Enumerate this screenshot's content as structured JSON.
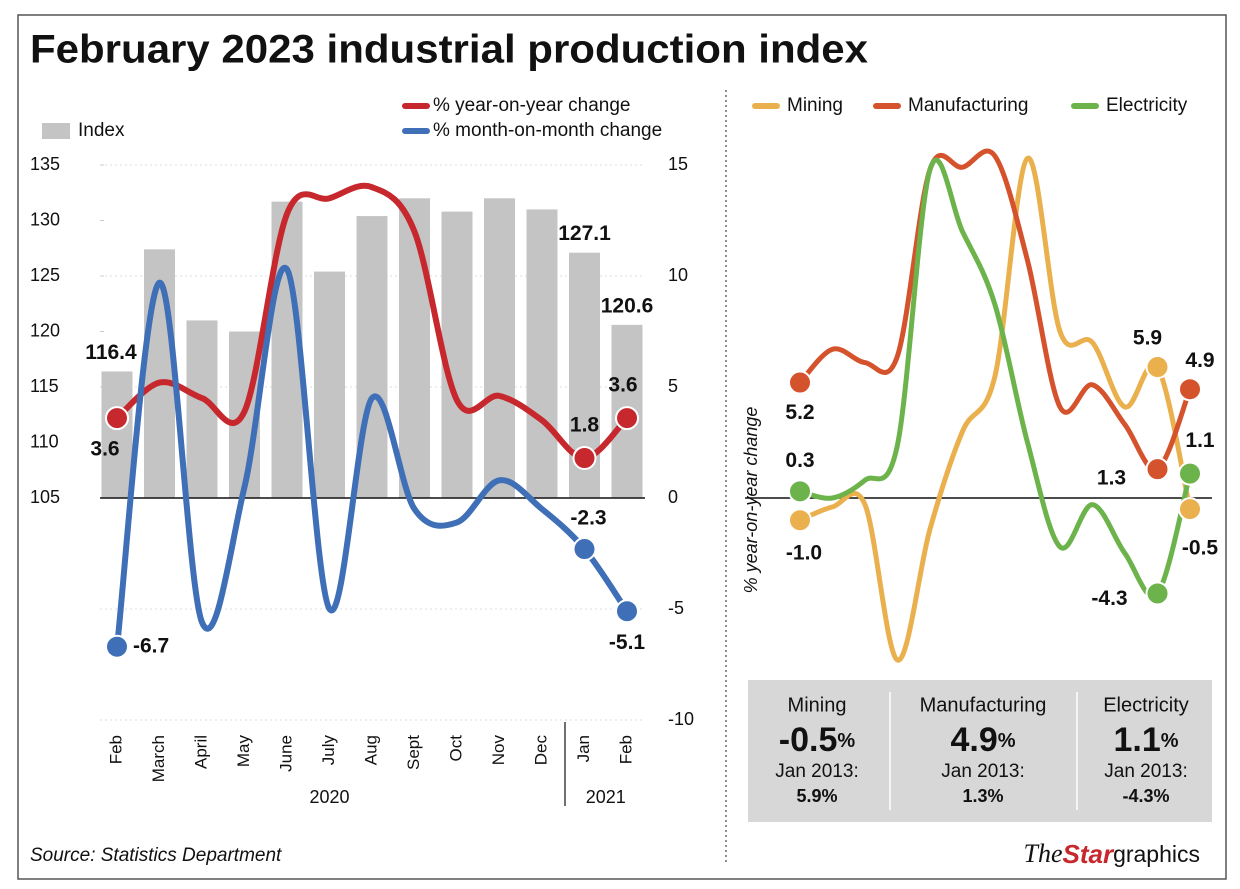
{
  "title": "February 2023 industrial production index",
  "source": "Source: Statistics Department",
  "credit": [
    "The",
    "Star",
    "graphics"
  ],
  "chart_data": [
    {
      "type": "bar",
      "categories": [
        "Feb",
        "March",
        "April",
        "May",
        "June",
        "July",
        "Aug",
        "Sept",
        "Oct",
        "Nov",
        "Dec",
        "Jan",
        "Feb"
      ],
      "category_groups": [
        {
          "label": "2020",
          "from": 0,
          "to": 10
        },
        {
          "label": "2021",
          "from": 11,
          "to": 12
        }
      ],
      "ylim": [
        105,
        135
      ],
      "yticks": [
        105,
        110,
        115,
        120,
        125,
        130,
        135
      ],
      "y2lim": [
        -10,
        15
      ],
      "y2ticks": [
        -10,
        -5,
        0,
        5,
        10,
        15
      ],
      "series": [
        {
          "name": "Index",
          "type": "bar",
          "color": "#c4c4c4",
          "values": [
            116.4,
            127.4,
            121,
            120,
            131.7,
            125.4,
            130.4,
            132,
            130.8,
            132,
            131,
            127.1,
            120.6
          ],
          "value_labels": [
            "116.4",
            null,
            null,
            null,
            null,
            null,
            null,
            null,
            null,
            null,
            null,
            "127.1",
            "120.6"
          ]
        },
        {
          "name": "% year-on-year change",
          "type": "line",
          "axis": "y2",
          "color": "#c6282d",
          "values": [
            3.6,
            5.2,
            4.5,
            3.9,
            12.8,
            13.5,
            14,
            12,
            4.4,
            4.6,
            3.5,
            1.8,
            3.6
          ],
          "value_labels": [
            "3.6",
            null,
            null,
            null,
            null,
            null,
            null,
            null,
            null,
            null,
            null,
            "1.8",
            "3.6"
          ]
        },
        {
          "name": "% month-on-month change",
          "type": "line",
          "axis": "y2",
          "color": "#3f6fb6",
          "values": [
            -6.7,
            9.7,
            -5.6,
            0.5,
            10.3,
            -5,
            4.5,
            -0.5,
            -1.1,
            0.8,
            -0.5,
            -2.3,
            -5.1
          ],
          "value_labels": [
            "-6.7",
            null,
            null,
            null,
            null,
            null,
            null,
            null,
            null,
            null,
            null,
            "-2.3",
            "-5.1"
          ]
        }
      ]
    },
    {
      "type": "line",
      "y_label": "% year-on-year change",
      "categories": [
        null,
        null,
        null,
        null,
        null,
        null,
        null,
        null,
        null,
        null,
        null,
        null,
        null
      ],
      "ylim": [
        -10,
        15
      ],
      "series": [
        {
          "name": "Mining",
          "color": "#ebb04e",
          "values": [
            -1.0,
            -0.4,
            -0.3,
            -7.3,
            -1.4,
            3,
            5.5,
            15.3,
            7.5,
            7,
            4.1,
            5.9,
            -0.5
          ],
          "value_labels": [
            "-1.0",
            null,
            null,
            null,
            null,
            null,
            null,
            null,
            null,
            null,
            null,
            "5.9",
            "-0.5"
          ]
        },
        {
          "name": "Manufacturing",
          "color": "#d5532c",
          "values": [
            5.2,
            6.7,
            6.1,
            6.4,
            14.8,
            14.9,
            15.4,
            10.7,
            4.1,
            5.1,
            3.3,
            1.3,
            4.9
          ],
          "value_labels": [
            "5.2",
            null,
            null,
            null,
            null,
            null,
            null,
            null,
            null,
            null,
            null,
            "1.3",
            "4.9"
          ]
        },
        {
          "name": "Electricity",
          "color": "#6db34c",
          "values": [
            0.3,
            0,
            0.8,
            2.4,
            14.8,
            12,
            8.7,
            2.5,
            -2.2,
            -0.3,
            -2.5,
            -4.3,
            1.1
          ],
          "value_labels": [
            "0.3",
            null,
            null,
            null,
            null,
            null,
            null,
            null,
            null,
            null,
            null,
            "-4.3",
            "1.1"
          ]
        }
      ]
    }
  ],
  "summary": [
    {
      "name": "Mining",
      "value": "-0.5",
      "unit": "%",
      "compare_label": "Jan 2013:",
      "compare_value": "5.9%"
    },
    {
      "name": "Manufacturing",
      "value": "4.9",
      "unit": "%",
      "compare_label": "Jan 2013:",
      "compare_value": "1.3%"
    },
    {
      "name": "Electricity",
      "value": "1.1",
      "unit": "%",
      "compare_label": "Jan 2013:",
      "compare_value": "-4.3%"
    }
  ]
}
